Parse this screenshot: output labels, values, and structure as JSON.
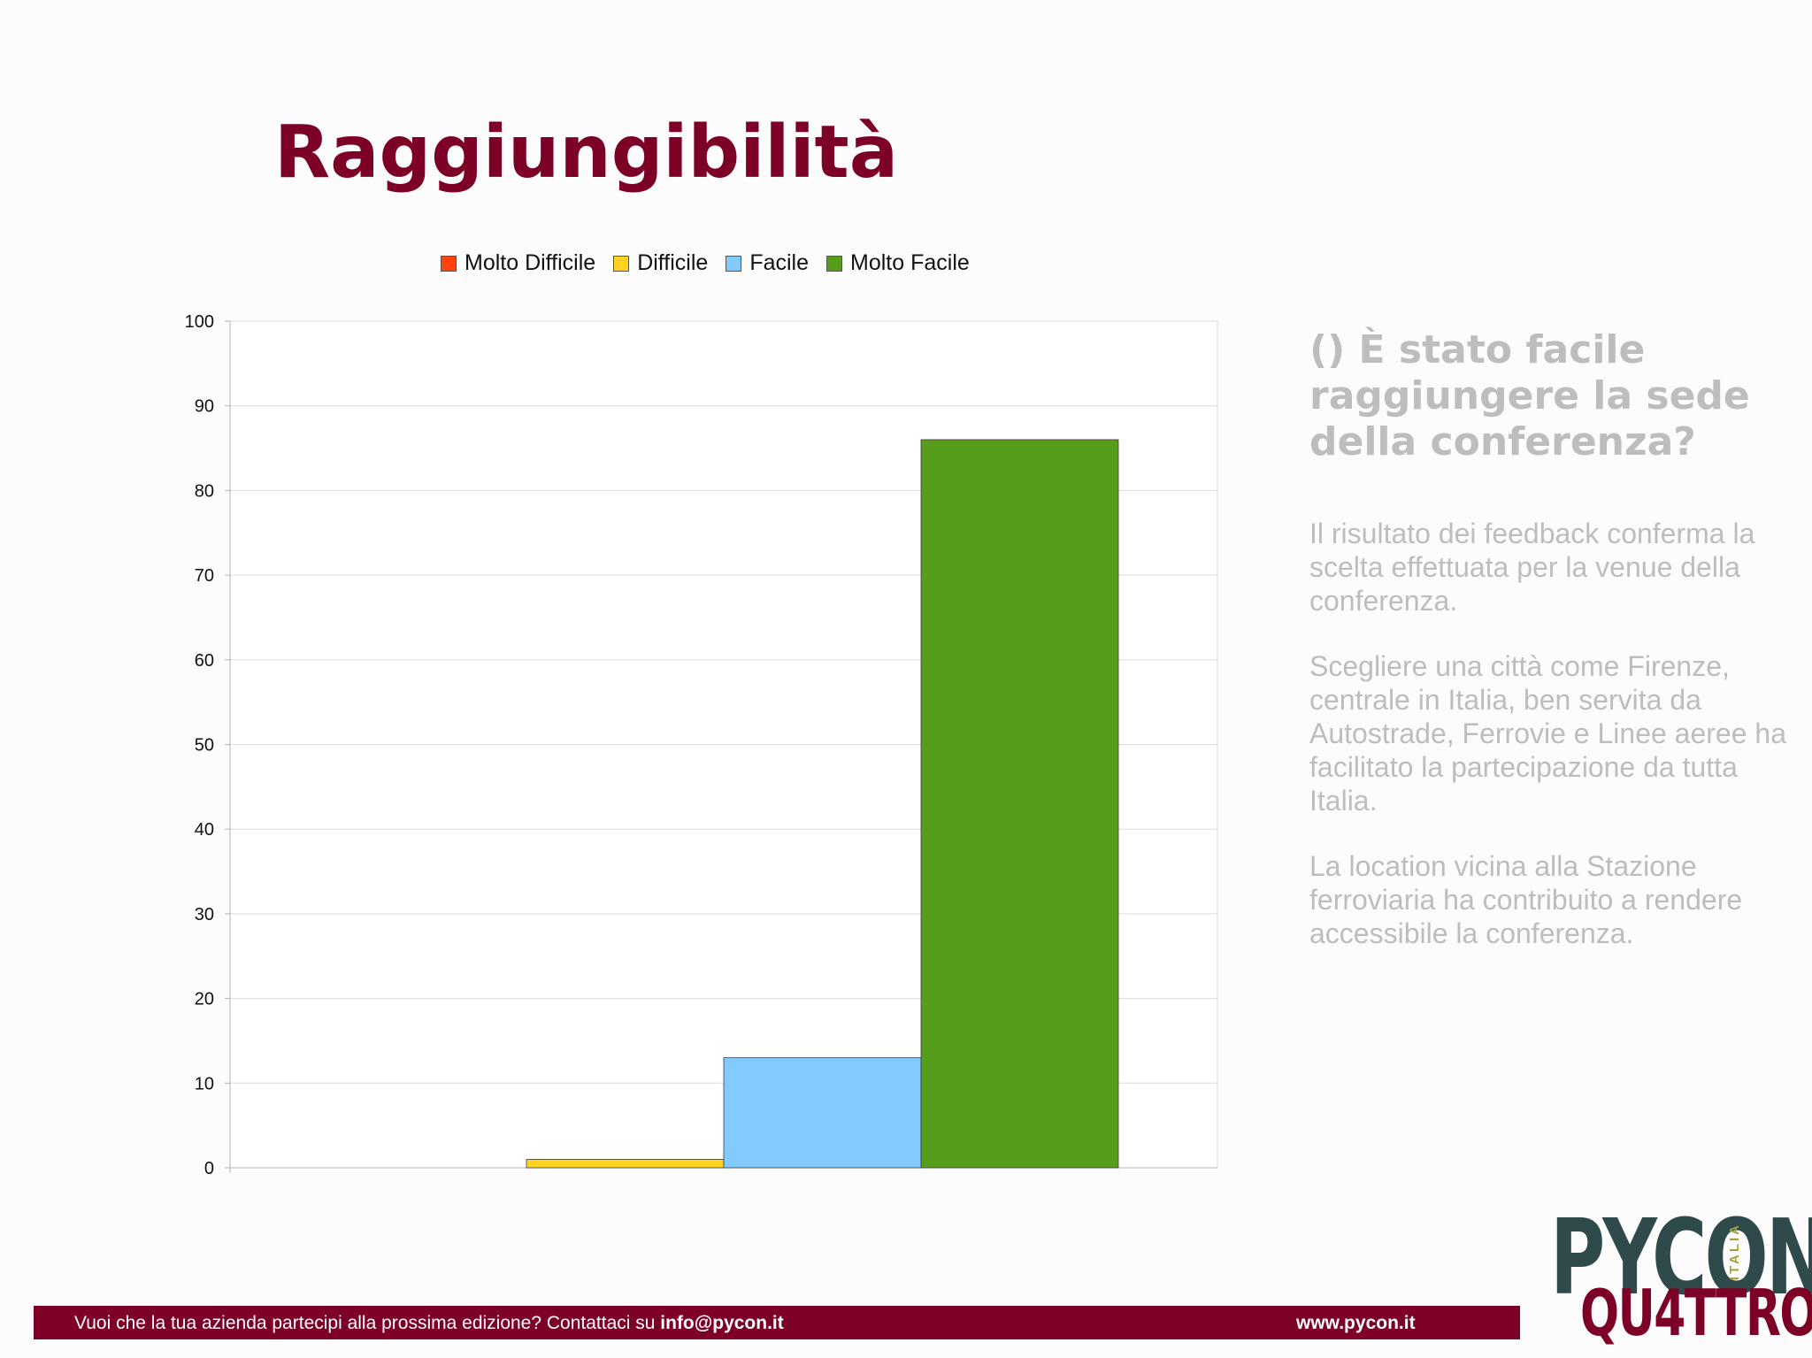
{
  "slide": {
    "title": "Raggiungibilità"
  },
  "chart_data": {
    "type": "bar",
    "title": "",
    "xlabel": "",
    "ylabel": "",
    "ylim": [
      0,
      100
    ],
    "yticks": [
      0,
      10,
      20,
      30,
      40,
      50,
      60,
      70,
      80,
      90,
      100
    ],
    "grid": true,
    "legend_position": "top",
    "series": [
      {
        "name": "Molto Difficile",
        "color": "#ff420e",
        "value": 0
      },
      {
        "name": "Difficile",
        "color": "#ffd320",
        "value": 1
      },
      {
        "name": "Facile",
        "color": "#83caff",
        "value": 13
      },
      {
        "name": "Molto Facile",
        "color": "#579d1c",
        "value": 86
      }
    ]
  },
  "side": {
    "question_prefix": "()",
    "question": "È stato facile raggiungere la sede della conferenza?",
    "paragraphs": [
      "Il risultato dei feedback conferma la scelta effettuata per la venue della conferenza.",
      "Scegliere una città come Firenze, centrale in Italia, ben servita da Autostrade, Ferrovie e Linee aeree ha facilitato la partecipazione da tutta Italia.",
      "La location vicina alla Stazione ferroviaria ha contribuito a rendere accessibile la conferenza."
    ]
  },
  "footer": {
    "message": "Vuoi che la tua azienda partecipi alla prossima edizione? Contattaci su ",
    "email": "info@pycon.it",
    "url": "www.pycon.it"
  },
  "logo": {
    "line1": "PYCON",
    "line2": "QU4TTRO",
    "side": "ITALIA"
  },
  "colors": {
    "accent": "#7d0026",
    "side_text": "#bdbdbd",
    "logo_dark": "#2f4a4a",
    "logo_gold": "#a9a03c"
  }
}
